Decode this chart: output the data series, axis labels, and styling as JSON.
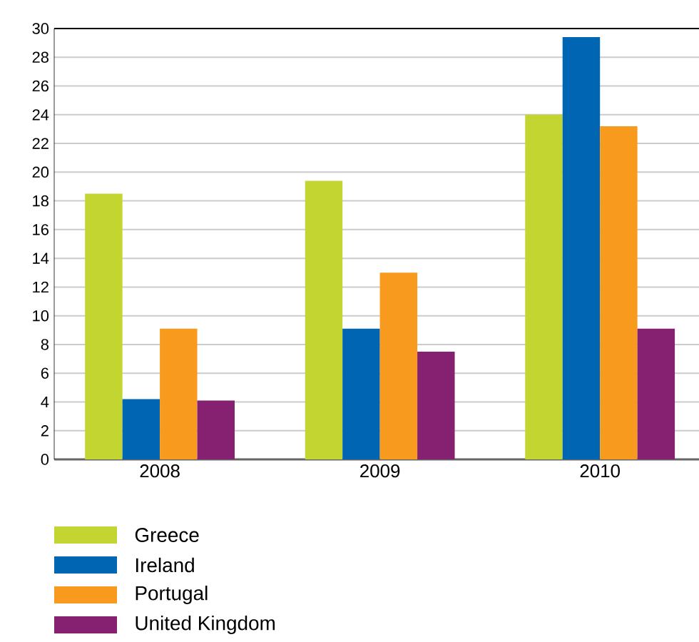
{
  "chart_data": {
    "type": "bar",
    "categories": [
      "2008",
      "2009",
      "2010"
    ],
    "series": [
      {
        "name": "Greece",
        "color": "#c2d531",
        "values": [
          18.5,
          19.4,
          24.0
        ]
      },
      {
        "name": "Ireland",
        "color": "#0066b3",
        "values": [
          4.2,
          9.1,
          29.4
        ]
      },
      {
        "name": "Portugal",
        "color": "#f79a1e",
        "values": [
          9.1,
          13.0,
          23.2
        ]
      },
      {
        "name": "United Kingdom",
        "color": "#862070",
        "values": [
          4.1,
          7.5,
          9.1
        ]
      }
    ],
    "ylim": [
      0,
      30
    ],
    "yticks": [
      0,
      2,
      4,
      6,
      8,
      10,
      12,
      14,
      16,
      18,
      20,
      22,
      24,
      26,
      28,
      30
    ],
    "grid": "y",
    "legend": "bottom left"
  }
}
